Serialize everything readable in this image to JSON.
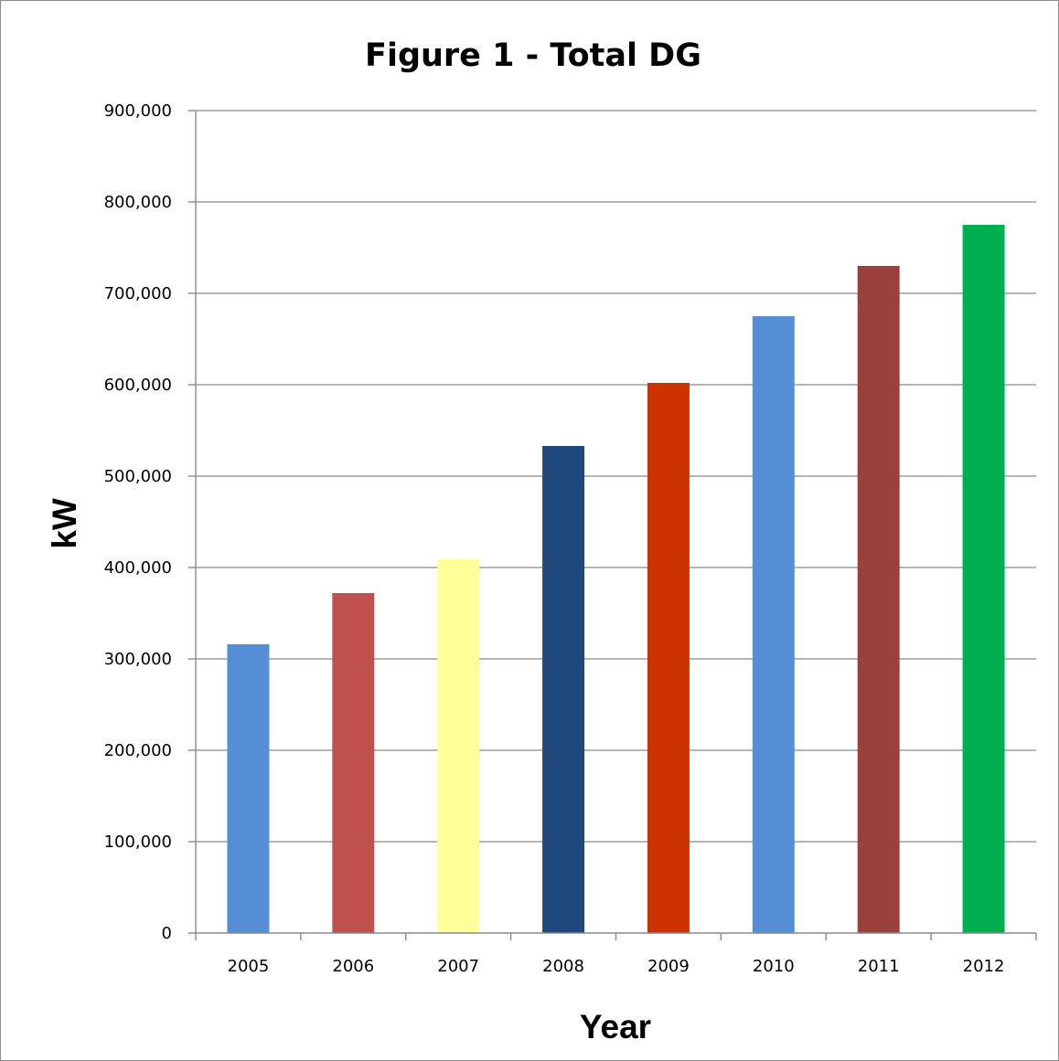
{
  "chart_data": {
    "type": "bar",
    "title": "Figure 1 - Total DG",
    "xlabel": "Year",
    "ylabel": "kW",
    "categories": [
      "2005",
      "2006",
      "2007",
      "2008",
      "2009",
      "2010",
      "2011",
      "2012"
    ],
    "values": [
      316000,
      372000,
      409000,
      533000,
      602000,
      675000,
      730000,
      775000
    ],
    "bar_colors": [
      "#558ED5",
      "#C0504D",
      "#FFFF99",
      "#1F497D",
      "#CC3300",
      "#558ED5",
      "#9C403E",
      "#00B050"
    ],
    "ylim": [
      0,
      900000
    ],
    "yticks": [
      0,
      100000,
      200000,
      300000,
      400000,
      500000,
      600000,
      700000,
      800000,
      900000
    ],
    "ytick_labels": [
      "0",
      "100,000",
      "200,000",
      "300,000",
      "400,000",
      "500,000",
      "600,000",
      "700,000",
      "800,000",
      "900,000"
    ],
    "grid": true,
    "legend": "none"
  }
}
